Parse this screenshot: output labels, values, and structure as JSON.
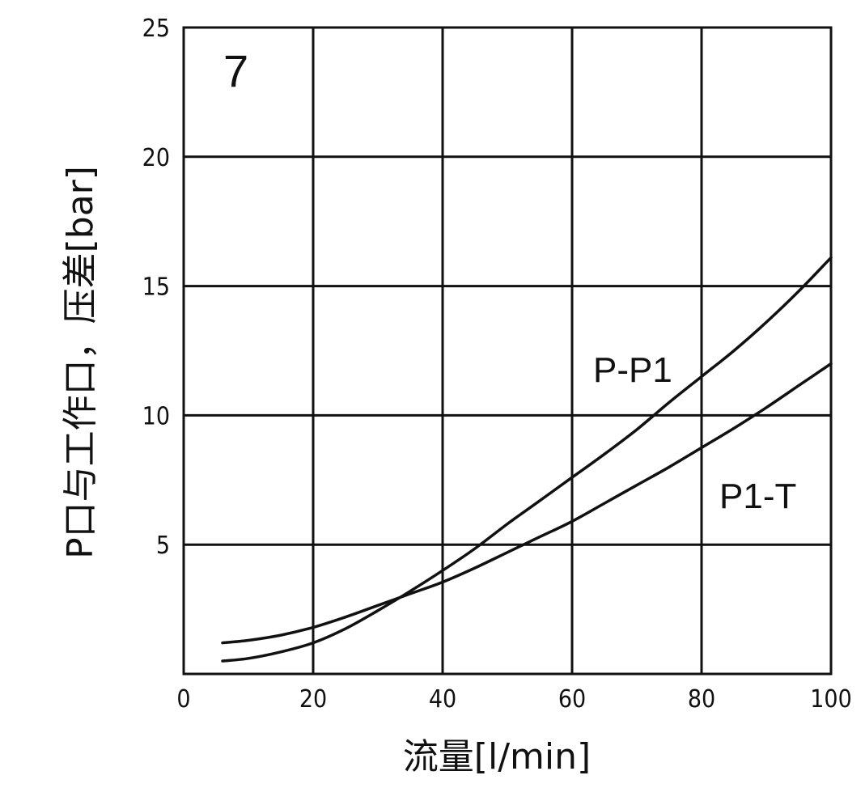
{
  "chart_data": {
    "type": "line",
    "panel_number": "7",
    "xlabel": "流量[l/min]",
    "ylabel": "P口与工作口，压差[bar]",
    "xlim": [
      0,
      100
    ],
    "ylim": [
      0,
      25
    ],
    "x_ticks": [
      "0",
      "20",
      "40",
      "60",
      "80",
      "100"
    ],
    "y_ticks": [
      "5",
      "10",
      "15",
      "20",
      "25"
    ],
    "grid": true,
    "series": [
      {
        "name": "P-P1",
        "x": [
          6,
          10,
          15,
          20,
          25,
          30,
          35,
          40,
          45,
          50,
          55,
          60,
          65,
          70,
          75,
          80,
          85,
          90,
          95,
          100
        ],
        "y": [
          0.5,
          0.6,
          0.85,
          1.2,
          1.75,
          2.45,
          3.2,
          4.0,
          4.85,
          5.8,
          6.7,
          7.6,
          8.5,
          9.45,
          10.5,
          11.5,
          12.5,
          13.6,
          14.8,
          16.1
        ]
      },
      {
        "name": "P1-T",
        "x": [
          6,
          10,
          15,
          20,
          25,
          30,
          35,
          40,
          45,
          50,
          55,
          60,
          65,
          70,
          75,
          80,
          85,
          90,
          95,
          100
        ],
        "y": [
          1.2,
          1.3,
          1.5,
          1.8,
          2.2,
          2.65,
          3.1,
          3.55,
          4.1,
          4.7,
          5.3,
          5.9,
          6.6,
          7.3,
          8.0,
          8.75,
          9.5,
          10.3,
          11.15,
          12.0
        ]
      }
    ]
  }
}
